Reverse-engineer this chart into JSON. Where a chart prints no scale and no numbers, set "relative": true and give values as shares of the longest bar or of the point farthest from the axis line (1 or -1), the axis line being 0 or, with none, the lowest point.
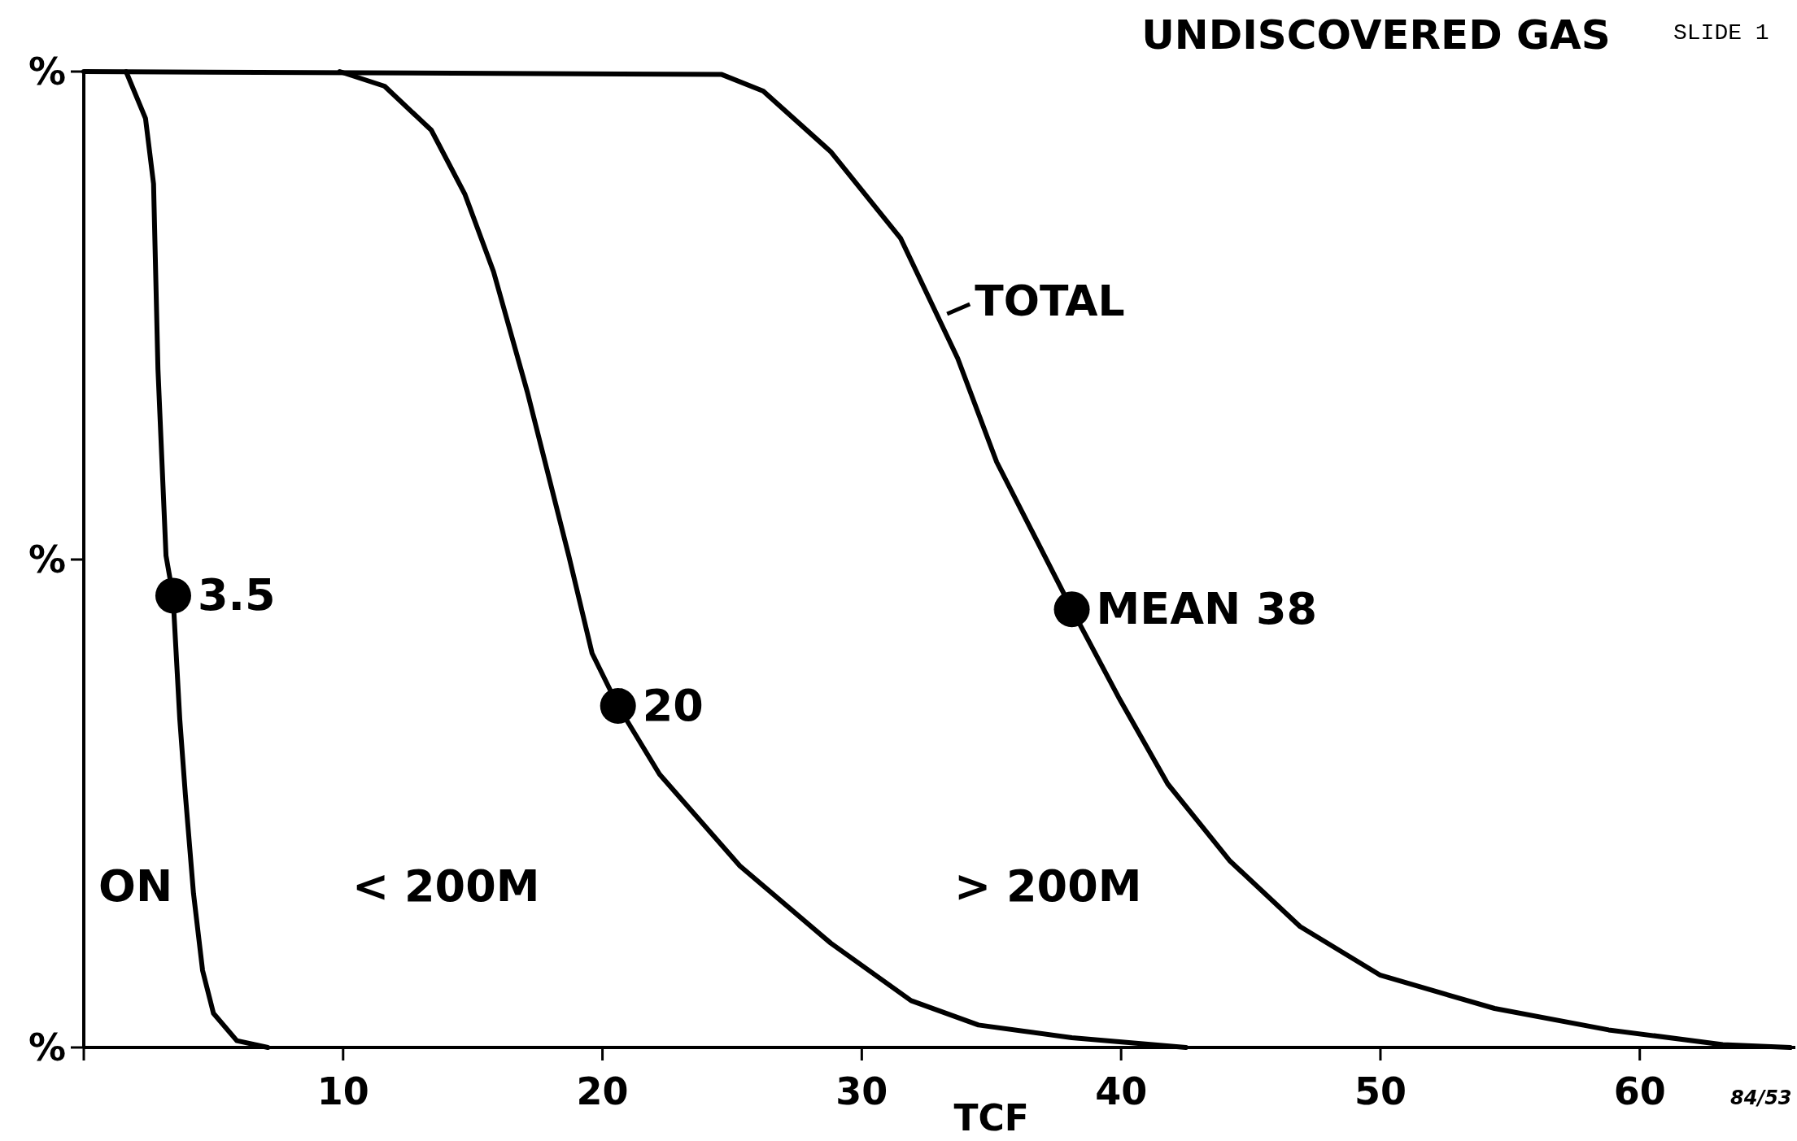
{
  "chart_data": {
    "type": "line",
    "title": "UNDISCOVERED GAS",
    "xlabel": "TCF",
    "xlim": [
      0,
      66
    ],
    "xticks": [
      {
        "value": 0,
        "label": null
      },
      10,
      20,
      30,
      40,
      50,
      60
    ],
    "relative": true,
    "line_style": "solid",
    "series": [
      {
        "color": "#000000",
        "marker": "none",
        "x": [
          1.63,
          2.38,
          2.69,
          2.86,
          3.17,
          3.44,
          3.7,
          3.92,
          4.23,
          4.58,
          5.0,
          5.9,
          7.1
        ],
        "values": [
          1,
          0.952,
          0.885,
          0.695,
          0.504,
          0.463,
          0.337,
          0.258,
          0.158,
          0.079,
          0.035,
          0.007,
          0
        ]
      },
      {
        "color": "#000000",
        "marker": "none",
        "x": [
          9.87,
          11.6,
          13.4,
          14.7,
          15.8,
          17.1,
          18.7,
          19.6,
          20.6,
          22.2,
          25.3,
          28.8,
          31.9,
          34.5,
          38.1,
          42.5
        ],
        "values": [
          1,
          0.985,
          0.94,
          0.874,
          0.795,
          0.672,
          0.504,
          0.404,
          0.35,
          0.28,
          0.186,
          0.107,
          0.048,
          0.023,
          0.01,
          0
        ]
      },
      {
        "name": "TOTAL",
        "color": "#000000",
        "marker": "none",
        "x": [
          0,
          24.6,
          26.2,
          28.8,
          31.5,
          33.7,
          35.2,
          38.1,
          39.9,
          41.8,
          44.2,
          46.9,
          50,
          54.4,
          58.8,
          63.2,
          65.8
        ],
        "values": [
          1,
          0.997,
          0.98,
          0.918,
          0.829,
          0.706,
          0.6,
          0.449,
          0.359,
          0.27,
          0.191,
          0.124,
          0.074,
          0.04,
          0.018,
          0.003,
          0
        ]
      },
      {
        "type": "scatter",
        "color": "#000000",
        "marker": "circle",
        "x": [
          3.45,
          20.6,
          38.1
        ],
        "values": [
          0.463,
          0.35,
          0.449
        ]
      }
    ],
    "annotations": [
      {
        "text": "3.5",
        "x": 3.45,
        "y": 0.463
      },
      {
        "text": "20",
        "x": 20.6,
        "y": 0.35
      },
      {
        "text": "MEAN 38",
        "x": 38.1,
        "y": 0.449
      },
      "%",
      "%",
      "%",
      "ON",
      "< 200M",
      "> 200M",
      "SLIDE 1",
      "84/53"
    ]
  }
}
